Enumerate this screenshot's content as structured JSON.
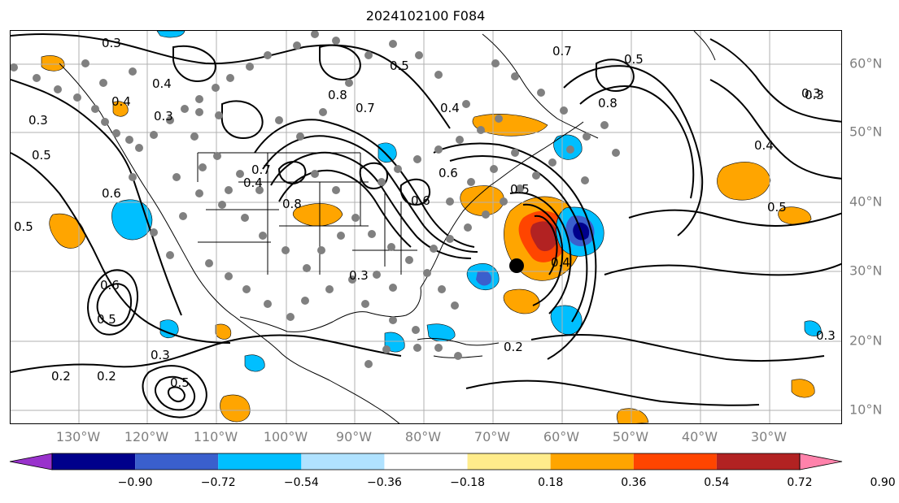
{
  "title": "2024102100 F084",
  "lon_labels": [
    "130°W",
    "120°W",
    "110°W",
    "100°W",
    "90°W",
    "80°W",
    "70°W",
    "60°W",
    "50°W",
    "40°W",
    "30°W"
  ],
  "lat_labels": [
    "60°N",
    "50°N",
    "40°N",
    "30°N",
    "20°N",
    "10°N"
  ],
  "contour_labels": [
    "0.3",
    "0.3",
    "0.4",
    "0.5",
    "0.4",
    "0.3",
    "0.5",
    "0.6",
    "0.7",
    "0.8",
    "0.7",
    "0.8",
    "0.5",
    "0.4",
    "0.6",
    "0.5",
    "0.6",
    "0.7",
    "0.8",
    "0.4",
    "0.5",
    "0.3",
    "0.2",
    "0.3",
    "0.5",
    "0.2",
    "0.3",
    "0.4",
    "0.3",
    "0.5",
    "0.6",
    "0.4",
    "0.5",
    "0.3",
    "0.2"
  ],
  "colorbar": {
    "colors": [
      "#9932CC",
      "#00008B",
      "#3A5FCD",
      "#00BFFF",
      "#B0E2FF",
      "#FFFFFF",
      "#FFEC8B",
      "#FFA500",
      "#FF4500",
      "#B22222",
      "#FF82AB"
    ],
    "tick_labels": [
      "−0.90",
      "−0.72",
      "−0.54",
      "−0.36",
      "−0.18",
      "0.18",
      "0.36",
      "0.54",
      "0.72",
      "0.90"
    ]
  },
  "colors": {
    "contour": "#000000",
    "station_dot": "#808080",
    "axis_label": "#808080",
    "grid": "#B0B0B0",
    "storm_marker": "#000000"
  }
}
